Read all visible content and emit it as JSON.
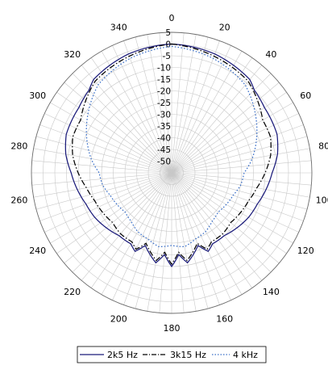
{
  "chart_data": {
    "type": "polar-line",
    "angle_unit": "degrees",
    "angle_zero": "top",
    "angle_direction": "clockwise",
    "angle_ticks": [
      0,
      20,
      40,
      60,
      80,
      100,
      120,
      140,
      160,
      180,
      200,
      220,
      240,
      260,
      280,
      300,
      320,
      340
    ],
    "angle_tick_labels": [
      "0",
      "20",
      "40",
      "60",
      "80",
      "100",
      "120",
      "140",
      "160",
      "180",
      "200",
      "220",
      "240",
      "260",
      "280",
      "300",
      "320",
      "340"
    ],
    "radial_range": [
      -55,
      5
    ],
    "radial_ticks": [
      5,
      0,
      -5,
      -10,
      -15,
      -20,
      -25,
      -30,
      -35,
      -40,
      -45,
      -50
    ],
    "radial_tick_labels": [
      "5",
      "0",
      "-5",
      "-10",
      "-15",
      "-20",
      "-25",
      "-30",
      "-35",
      "-40",
      "-45",
      "-50"
    ],
    "angle_grid_step": 5,
    "grid": true,
    "legend_position": "bottom",
    "colors": {
      "grid": "#c8c8c8",
      "ring": "#6e6e6e"
    },
    "series": [
      {
        "name": "2k5 Hz",
        "color": "#1a1a7a",
        "dash": "solid",
        "angles": [
          0,
          20,
          40,
          45,
          55,
          70,
          80,
          90,
          100,
          110,
          120,
          130,
          140,
          150,
          155,
          160,
          165,
          170,
          175,
          180,
          185,
          190,
          195,
          200,
          205,
          210,
          220,
          230,
          240,
          250,
          260,
          270,
          280,
          290,
          305,
          315,
          320,
          340,
          360
        ],
        "values": [
          0,
          -1,
          -3,
          -5,
          -6.5,
          -7,
          -9,
          -12,
          -14,
          -16,
          -17,
          -18.5,
          -20,
          -20,
          -18,
          -22,
          -19,
          -16,
          -20,
          -15,
          -20,
          -16,
          -19,
          -22,
          -18,
          -20,
          -20,
          -18.5,
          -17,
          -16,
          -14,
          -12,
          -9,
          -7,
          -6.5,
          -5,
          -3,
          -1,
          0
        ]
      },
      {
        "name": "3k15 Hz",
        "color": "#000000",
        "dash": "dash-dot",
        "angles": [
          0,
          20,
          30,
          40,
          50,
          60,
          70,
          80,
          90,
          100,
          110,
          120,
          130,
          140,
          150,
          155,
          160,
          165,
          170,
          175,
          180,
          185,
          190,
          195,
          200,
          205,
          210,
          220,
          230,
          240,
          250,
          260,
          270,
          280,
          290,
          300,
          310,
          320,
          330,
          340,
          360
        ],
        "values": [
          0,
          -2,
          -3,
          -4,
          -7,
          -10,
          -10,
          -12,
          -15,
          -18,
          -20,
          -21,
          -22,
          -21,
          -21,
          -19,
          -23,
          -20,
          -17,
          -21,
          -16,
          -21,
          -17,
          -20,
          -23,
          -19,
          -21,
          -21,
          -22,
          -21,
          -20,
          -18,
          -15,
          -12,
          -10,
          -10,
          -7,
          -4,
          -3,
          -2,
          0
        ]
      },
      {
        "name": "4 kHz",
        "color": "#3a6fc8",
        "dash": "dotted",
        "angles": [
          0,
          20,
          40,
          60,
          80,
          90,
          100,
          110,
          120,
          130,
          140,
          150,
          160,
          170,
          180,
          190,
          200,
          210,
          220,
          230,
          240,
          250,
          260,
          270,
          280,
          300,
          320,
          340,
          360
        ],
        "values": [
          -1,
          -3,
          -6,
          -13,
          -20,
          -24,
          -25,
          -27,
          -28,
          -29,
          -28,
          -26,
          -25,
          -23,
          -24,
          -23,
          -25,
          -26,
          -28,
          -29,
          -28,
          -27,
          -25,
          -24,
          -20,
          -13,
          -6,
          -3,
          -1
        ]
      }
    ]
  }
}
